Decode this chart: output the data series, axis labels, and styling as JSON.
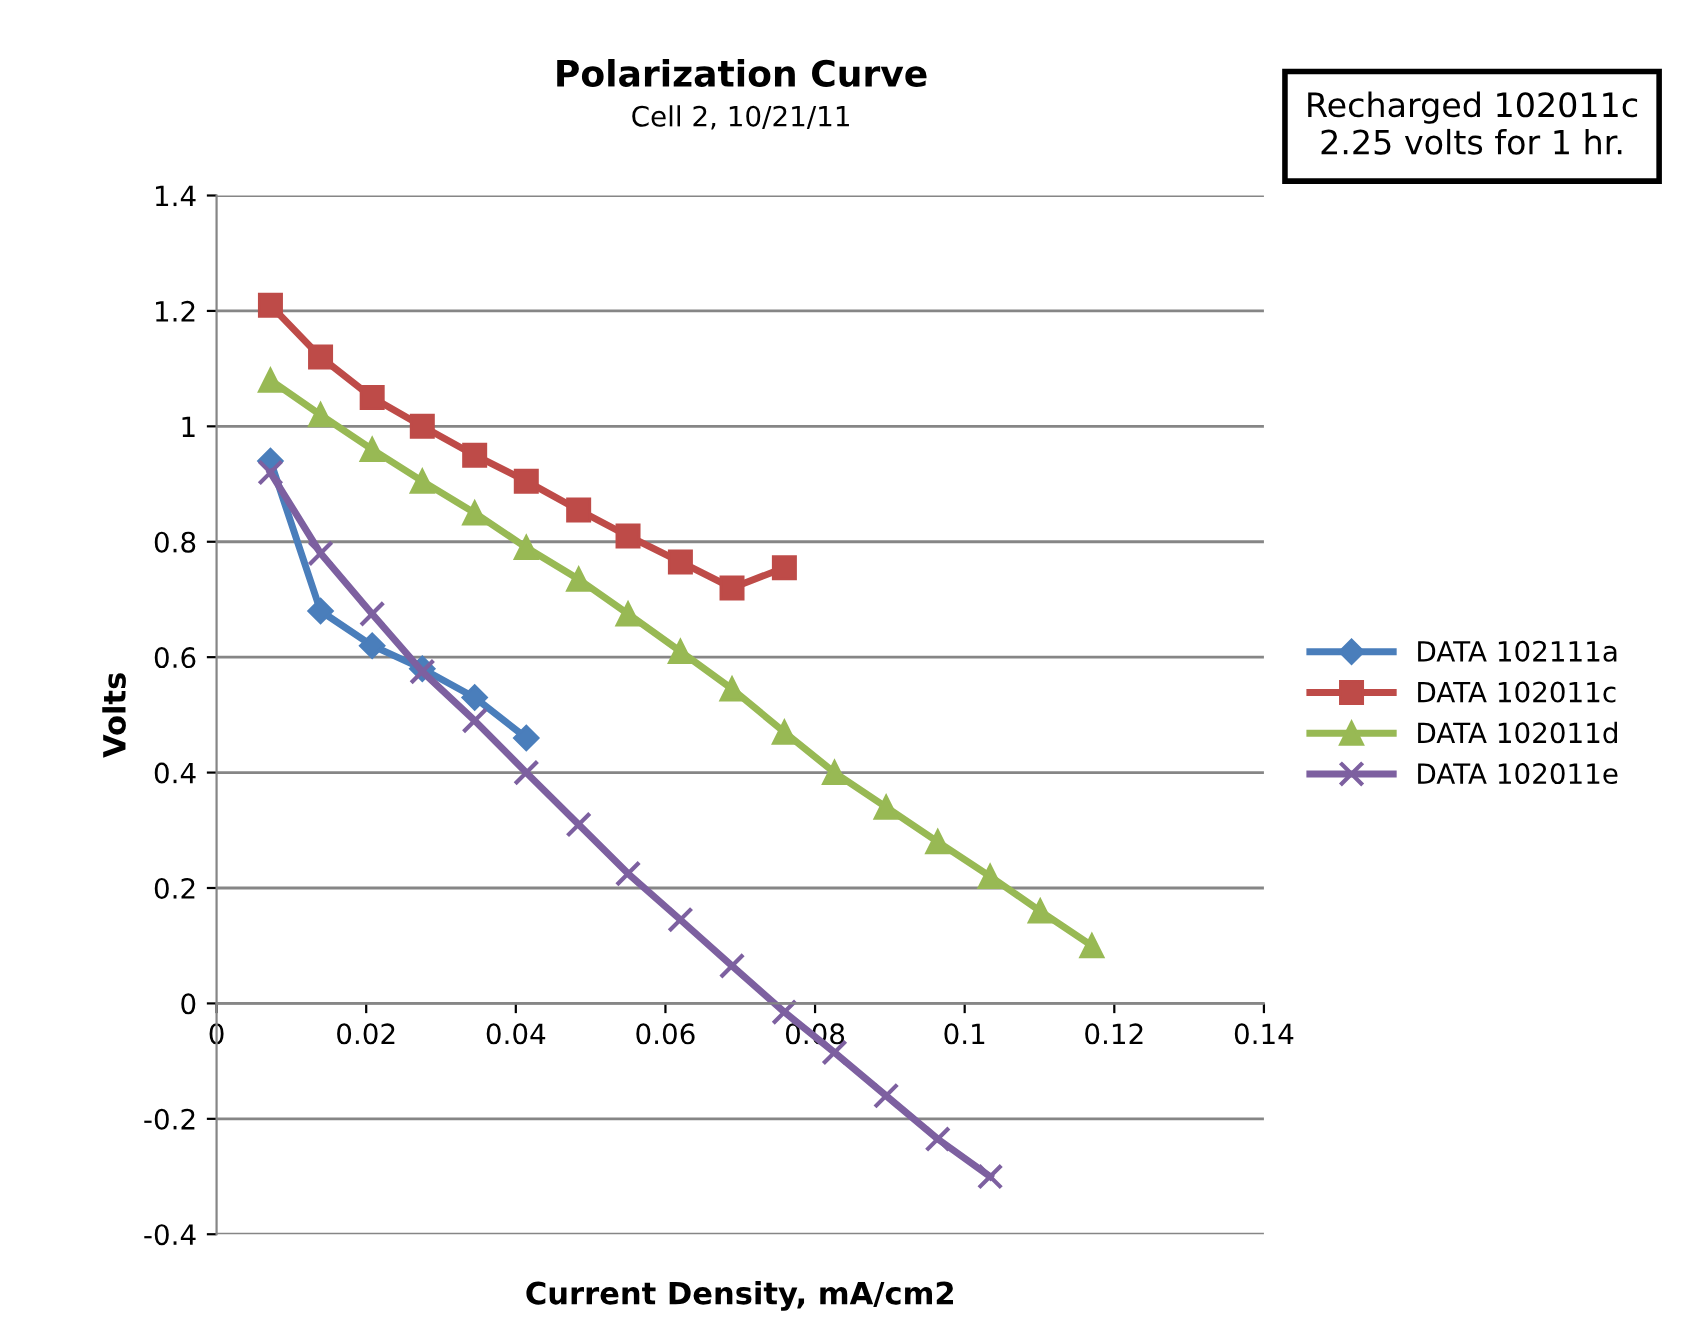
{
  "chart_data": {
    "type": "line",
    "title": "Polarization Curve",
    "subtitle": "Cell 2, 10/21/11",
    "xlabel": "Current Density, mA/cm2",
    "ylabel": "Volts",
    "annotations": [
      "Recharged 102011c\n2.25 volts for 1 hr."
    ],
    "xlim": [
      0,
      0.14
    ],
    "xticks": [
      0,
      0.02,
      0.04,
      0.06,
      0.08,
      0.1,
      0.12,
      0.14
    ],
    "ylim": [
      -0.4,
      1.4
    ],
    "yticks": [
      -0.4,
      -0.2,
      0,
      0.2,
      0.4,
      0.6,
      0.8,
      1,
      1.2,
      1.4
    ],
    "grid": "y",
    "legend": "right",
    "series": [
      {
        "name": "DATA 102111a",
        "color": "#4a7ebb",
        "marker": "diamond",
        "x": [
          0.0072,
          0.0139,
          0.0208,
          0.0275,
          0.0345,
          0.0414
        ],
        "values": [
          0.94,
          0.68,
          0.62,
          0.58,
          0.53,
          0.46
        ]
      },
      {
        "name": "DATA 102011c",
        "color": "#be4b48",
        "marker": "square",
        "x": [
          0.0072,
          0.0139,
          0.0208,
          0.0275,
          0.0345,
          0.0414,
          0.0484,
          0.055,
          0.062,
          0.0689,
          0.0759
        ],
        "values": [
          1.21,
          1.12,
          1.05,
          1.0,
          0.95,
          0.905,
          0.855,
          0.81,
          0.765,
          0.72,
          0.755
        ]
      },
      {
        "name": "DATA 102011d",
        "color": "#98b954",
        "marker": "triangle",
        "x": [
          0.0072,
          0.0139,
          0.0208,
          0.0275,
          0.0345,
          0.0414,
          0.0484,
          0.055,
          0.062,
          0.0689,
          0.0759,
          0.0826,
          0.0895,
          0.0964,
          0.1034,
          0.1101,
          0.117
        ],
        "values": [
          1.08,
          1.02,
          0.96,
          0.905,
          0.85,
          0.79,
          0.735,
          0.675,
          0.61,
          0.545,
          0.47,
          0.4,
          0.34,
          0.28,
          0.22,
          0.16,
          0.1
        ]
      },
      {
        "name": "DATA 102011e",
        "color": "#7d60a0",
        "marker": "cross",
        "x": [
          0.0072,
          0.0139,
          0.0208,
          0.0275,
          0.0345,
          0.0414,
          0.0484,
          0.055,
          0.062,
          0.0689,
          0.0759,
          0.0826,
          0.0895,
          0.0964,
          0.1034
        ],
        "values": [
          0.92,
          0.78,
          0.675,
          0.575,
          0.49,
          0.4,
          0.31,
          0.225,
          0.145,
          0.065,
          -0.015,
          -0.085,
          -0.16,
          -0.235,
          -0.3
        ]
      }
    ]
  }
}
